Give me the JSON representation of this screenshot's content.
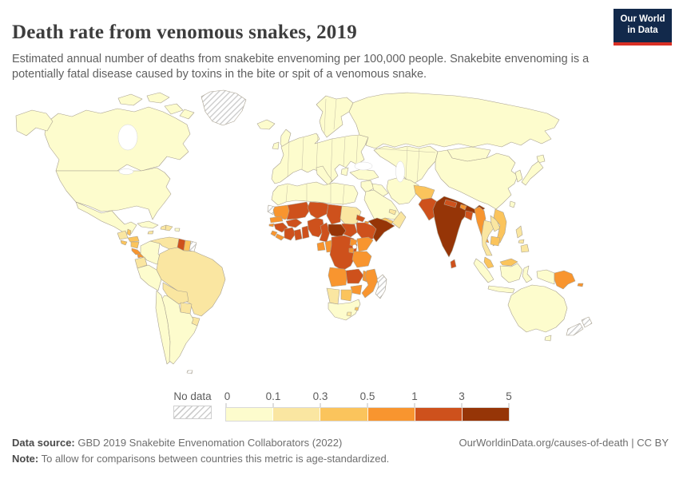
{
  "header": {
    "title": "Death rate from venomous snakes, 2019",
    "subtitle": "Estimated annual number of deaths from snakebite envenoming per 100,000 people. Snakebite envenoming is a potentially fatal disease caused by toxins in the bite or spit of a venomous snake.",
    "logo_line1": "Our World",
    "logo_line2": "in Data",
    "logo_bg": "#12294b",
    "logo_accent": "#d93025"
  },
  "legend": {
    "no_data_label": "No data",
    "ticks": [
      "0",
      "0.1",
      "0.3",
      "0.5",
      "1",
      "3",
      "5"
    ]
  },
  "footer": {
    "source_label": "Data source:",
    "source_text": " GBD 2019 Snakebite Envenomation Collaborators (2022)",
    "note_label": "Note:",
    "note_text": " To allow for comparisons between countries this metric is age-standardized.",
    "link_text": "OurWorldinData.org/causes-of-death | CC BY"
  },
  "chart_data": {
    "type": "choropleth-map",
    "title": "Death rate from venomous snakes, 2019",
    "unit": "deaths per 100,000 people (age-standardized)",
    "year": 2019,
    "bin_thresholds": [
      0,
      0.1,
      0.3,
      0.5,
      1,
      3,
      5
    ],
    "bin_labels": [
      "0-0.1",
      "0.1-0.3",
      "0.3-0.5",
      "0.5-1",
      "1-3",
      "3-5"
    ],
    "bin_colors": [
      "#fdfccd",
      "#fae6a1",
      "#fbc45c",
      "#f8952f",
      "#ce511c",
      "#963507"
    ],
    "no_data_style": "grey-diagonal-hatch",
    "regions": {
      "greenland": "no_data",
      "canada": 0,
      "united_states": 0,
      "mexico": 0,
      "guatemala": 1,
      "belize": 2,
      "honduras": 2,
      "el_salvador": 2,
      "nicaragua": 2,
      "costa_rica": 3,
      "panama": 3,
      "cuba": 0,
      "jamaica": 1,
      "haiti": 1,
      "dominican_republic": 1,
      "puerto_rico": 0,
      "trinidad_and_tobago": 3,
      "colombia": 0,
      "venezuela": 1,
      "guyana": 4,
      "suriname": 2,
      "french_guiana": "no_data",
      "ecuador": 1,
      "peru": 0,
      "brazil": 1,
      "bolivia": 1,
      "paraguay": 1,
      "uruguay": 1,
      "chile": 0,
      "argentina": 0,
      "falkland_islands": "no_data",
      "iceland": 0,
      "united_kingdom": 0,
      "ireland": 0,
      "scandinavia": 0,
      "europe": 0,
      "italy": 0,
      "greece": 0,
      "russia": 0,
      "central_asia": 0,
      "mongolia": 0,
      "china": 0,
      "south_korea": 0,
      "japan": 0,
      "taiwan": 0,
      "turkey": 0,
      "syria": 0,
      "iraq": 0,
      "iran": 0,
      "saudi_arabia": 0,
      "yemen": 2,
      "oman": 1,
      "united_arab_emirates": 1,
      "afghanistan": 2,
      "pakistan": 4,
      "india": 5,
      "nepal": 4,
      "bhutan": 3,
      "bangladesh": 4,
      "sri_lanka": 4,
      "myanmar": 3,
      "thailand": 1,
      "laos": 1,
      "vietnam": 2,
      "cambodia": 2,
      "malaysia": 2,
      "indonesia": 0,
      "philippines": 1,
      "papua_new_guinea": 3,
      "solomon_islands": 3,
      "timor_leste": 1,
      "australia": 0,
      "new_zealand": "no_data",
      "north_africa": 0,
      "western_sahara": "no_data",
      "mauritania": 3,
      "senegal": 3,
      "guinea_bissau": 3,
      "guinea": 4,
      "sierra_leone": 3,
      "liberia": 3,
      "cote_divoire": 4,
      "ghana": 4,
      "benin": 4,
      "burkina_faso": 4,
      "mali": 4,
      "niger": 4,
      "nigeria": 4,
      "chad": 4,
      "cameroon": 4,
      "central_african_republic": 5,
      "sudan": 1,
      "south_sudan": 4,
      "eritrea": 4,
      "djibouti": 3,
      "ethiopia": 4,
      "somalia": 5,
      "gabon": 3,
      "congo": 3,
      "drc": 4,
      "uganda": 3,
      "kenya": 3,
      "rwanda": 3,
      "tanzania": 3,
      "angola": 3,
      "zambia": 4,
      "malawi": 3,
      "mozambique": 3,
      "zimbabwe": 3,
      "botswana": 2,
      "namibia": 1,
      "south_africa": 0,
      "lesotho": 1,
      "eswatini": 2,
      "madagascar": "no_data"
    }
  }
}
